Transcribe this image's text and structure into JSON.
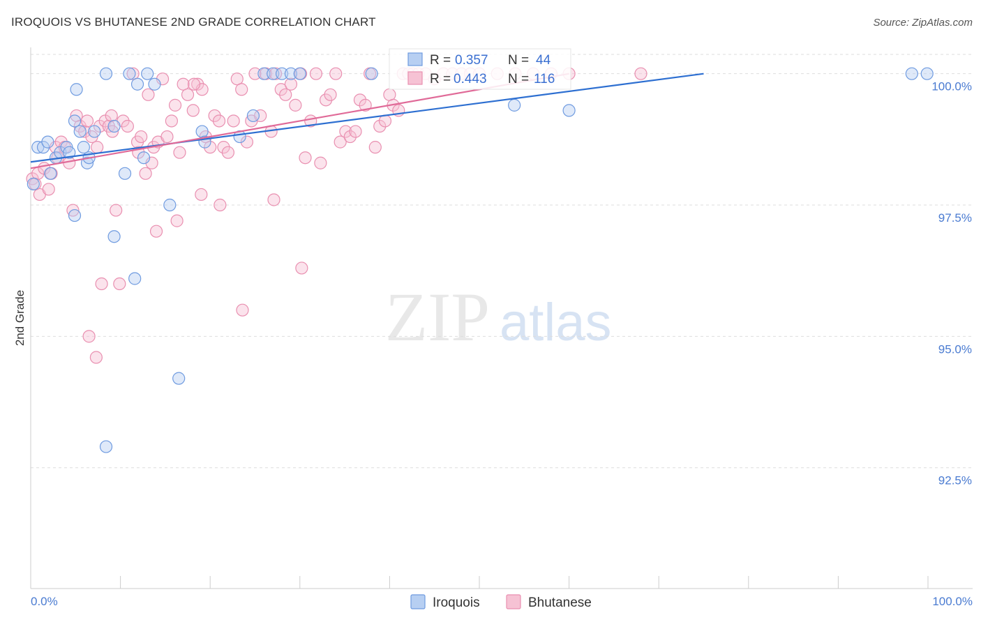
{
  "header": {
    "title": "IROQUOIS VS BHUTANESE 2ND GRADE CORRELATION CHART",
    "source": "Source: ZipAtlas.com"
  },
  "colors": {
    "iroquois": "#6f9be0",
    "iroquois_fill": "#b7cff2",
    "iroquois_line": "#2d6fd1",
    "bhutanese": "#e98fb0",
    "bhutanese_fill": "#f6c2d4",
    "bhutanese_line": "#e06a98",
    "axis_label": "#4a7bd1",
    "grid": "#dddddd"
  },
  "watermark": {
    "zip": "ZIP",
    "atlas": "atlas"
  },
  "chart_data": {
    "type": "scatter",
    "title": "IROQUOIS VS BHUTANESE 2ND GRADE CORRELATION CHART",
    "xlabel": "",
    "ylabel": "2nd Grade",
    "xlim": [
      0,
      100
    ],
    "ylim": [
      90.2,
      100.5
    ],
    "x_tick_labels": [
      "0.0%",
      "100.0%"
    ],
    "y_ticks": [
      92.5,
      95.0,
      97.5,
      100.0
    ],
    "y_tick_labels": [
      "92.5%",
      "95.0%",
      "97.5%",
      "100.0%"
    ],
    "legend": {
      "iroquois": {
        "r_label": "R =",
        "r_value": "0.357",
        "n_label": "N =",
        "n_value": "44"
      },
      "bhutanese": {
        "r_label": "R =",
        "r_value": "0.443",
        "n_label": "N =",
        "n_value": "116"
      }
    },
    "series": [
      {
        "name": "Iroquois",
        "trend": {
          "x": [
            0,
            75
          ],
          "y": [
            98.32,
            100.0
          ]
        },
        "points": [
          [
            0.3,
            97.9
          ],
          [
            0.8,
            98.6
          ],
          [
            1.4,
            98.6
          ],
          [
            1.9,
            98.7
          ],
          [
            2.2,
            98.1
          ],
          [
            2.8,
            98.4
          ],
          [
            3.3,
            98.5
          ],
          [
            4.0,
            98.6
          ],
          [
            4.3,
            98.5
          ],
          [
            4.9,
            99.1
          ],
          [
            5.1,
            99.7
          ],
          [
            5.5,
            98.9
          ],
          [
            5.9,
            98.6
          ],
          [
            6.3,
            98.3
          ],
          [
            6.5,
            98.4
          ],
          [
            7.1,
            98.9
          ],
          [
            8.4,
            100.0
          ],
          [
            9.3,
            99.0
          ],
          [
            10.5,
            98.1
          ],
          [
            11.0,
            100.0
          ],
          [
            11.9,
            99.8
          ],
          [
            12.6,
            98.4
          ],
          [
            13.0,
            100.0
          ],
          [
            13.8,
            99.8
          ],
          [
            4.9,
            97.3
          ],
          [
            9.3,
            96.9
          ],
          [
            11.6,
            96.1
          ],
          [
            15.5,
            97.5
          ],
          [
            16.5,
            94.2
          ],
          [
            8.4,
            92.9
          ],
          [
            19.1,
            98.9
          ],
          [
            19.4,
            98.7
          ],
          [
            23.3,
            98.8
          ],
          [
            24.8,
            99.2
          ],
          [
            26.0,
            100.0
          ],
          [
            27.0,
            100.0
          ],
          [
            28.0,
            100.0
          ],
          [
            29.0,
            100.0
          ],
          [
            30.0,
            100.0
          ],
          [
            38.0,
            100.0
          ],
          [
            53.9,
            99.4
          ],
          [
            60.0,
            99.3
          ],
          [
            98.2,
            100.0
          ],
          [
            99.9,
            100.0
          ]
        ]
      },
      {
        "name": "Bhutanese",
        "trend": {
          "x": [
            0,
            60
          ],
          "y": [
            98.2,
            100.0
          ]
        },
        "points": [
          [
            0.2,
            98.0
          ],
          [
            0.5,
            97.9
          ],
          [
            0.8,
            98.1
          ],
          [
            1.0,
            97.7
          ],
          [
            1.5,
            98.2
          ],
          [
            2.0,
            97.8
          ],
          [
            2.3,
            98.1
          ],
          [
            2.8,
            98.6
          ],
          [
            3.4,
            98.7
          ],
          [
            3.8,
            98.6
          ],
          [
            4.3,
            98.3
          ],
          [
            4.7,
            97.4
          ],
          [
            5.1,
            99.2
          ],
          [
            5.5,
            99.0
          ],
          [
            6.0,
            98.9
          ],
          [
            6.3,
            99.1
          ],
          [
            6.8,
            98.8
          ],
          [
            7.4,
            98.6
          ],
          [
            7.7,
            99.0
          ],
          [
            8.3,
            99.1
          ],
          [
            8.7,
            99.0
          ],
          [
            9.1,
            98.9
          ],
          [
            9.5,
            97.4
          ],
          [
            9.9,
            96.0
          ],
          [
            10.3,
            99.1
          ],
          [
            10.8,
            99.0
          ],
          [
            11.4,
            100.0
          ],
          [
            11.9,
            98.7
          ],
          [
            12.3,
            98.8
          ],
          [
            12.8,
            98.1
          ],
          [
            13.1,
            99.6
          ],
          [
            13.7,
            98.6
          ],
          [
            14.2,
            98.7
          ],
          [
            14.7,
            99.9
          ],
          [
            15.2,
            98.8
          ],
          [
            15.7,
            99.1
          ],
          [
            16.1,
            99.4
          ],
          [
            16.6,
            98.5
          ],
          [
            17.0,
            99.8
          ],
          [
            17.5,
            99.6
          ],
          [
            18.1,
            99.3
          ],
          [
            18.6,
            99.8
          ],
          [
            19.1,
            99.7
          ],
          [
            19.5,
            98.8
          ],
          [
            20.0,
            98.6
          ],
          [
            20.5,
            99.2
          ],
          [
            21.0,
            99.1
          ],
          [
            21.5,
            98.6
          ],
          [
            22.0,
            98.5
          ],
          [
            22.6,
            99.1
          ],
          [
            23.0,
            99.9
          ],
          [
            23.5,
            99.7
          ],
          [
            24.1,
            98.7
          ],
          [
            24.6,
            99.1
          ],
          [
            25.0,
            100.0
          ],
          [
            25.6,
            99.2
          ],
          [
            26.2,
            100.0
          ],
          [
            26.8,
            98.9
          ],
          [
            27.3,
            100.0
          ],
          [
            27.9,
            99.7
          ],
          [
            28.4,
            99.6
          ],
          [
            29.0,
            99.8
          ],
          [
            29.5,
            99.4
          ],
          [
            30.1,
            100.0
          ],
          [
            30.6,
            98.4
          ],
          [
            31.2,
            99.1
          ],
          [
            31.8,
            100.0
          ],
          [
            32.3,
            98.3
          ],
          [
            32.9,
            99.5
          ],
          [
            33.4,
            99.6
          ],
          [
            34.0,
            100.0
          ],
          [
            34.5,
            98.7
          ],
          [
            35.1,
            98.9
          ],
          [
            35.6,
            98.8
          ],
          [
            36.2,
            98.9
          ],
          [
            36.7,
            99.5
          ],
          [
            37.3,
            99.4
          ],
          [
            37.8,
            100.0
          ],
          [
            38.4,
            98.6
          ],
          [
            38.9,
            99.0
          ],
          [
            39.5,
            99.1
          ],
          [
            40.0,
            99.6
          ],
          [
            40.4,
            99.4
          ],
          [
            41.0,
            99.3
          ],
          [
            41.5,
            100.0
          ],
          [
            42.1,
            100.0
          ],
          [
            42.6,
            100.0
          ],
          [
            43.2,
            100.0
          ],
          [
            44.0,
            100.0
          ],
          [
            45.0,
            99.9
          ],
          [
            46.0,
            100.0
          ],
          [
            47.0,
            100.0
          ],
          [
            48.0,
            100.0
          ],
          [
            49.0,
            100.0
          ],
          [
            50.0,
            100.0
          ],
          [
            52.0,
            100.0
          ],
          [
            54.0,
            100.0
          ],
          [
            56.0,
            100.0
          ],
          [
            58.0,
            100.0
          ],
          [
            60.0,
            100.0
          ],
          [
            68.0,
            100.0
          ],
          [
            7.9,
            96.0
          ],
          [
            6.5,
            95.0
          ],
          [
            7.3,
            94.6
          ],
          [
            14.0,
            97.0
          ],
          [
            16.3,
            97.2
          ],
          [
            19.0,
            97.7
          ],
          [
            21.1,
            97.5
          ],
          [
            27.1,
            97.6
          ],
          [
            30.2,
            96.3
          ],
          [
            23.6,
            95.5
          ],
          [
            13.5,
            98.3
          ],
          [
            3.0,
            98.4
          ],
          [
            9.0,
            99.2
          ],
          [
            18.2,
            99.8
          ],
          [
            12.0,
            98.5
          ]
        ]
      }
    ]
  },
  "bottom_legend": {
    "iroquois_label": "Iroquois",
    "bhutanese_label": "Bhutanese"
  }
}
